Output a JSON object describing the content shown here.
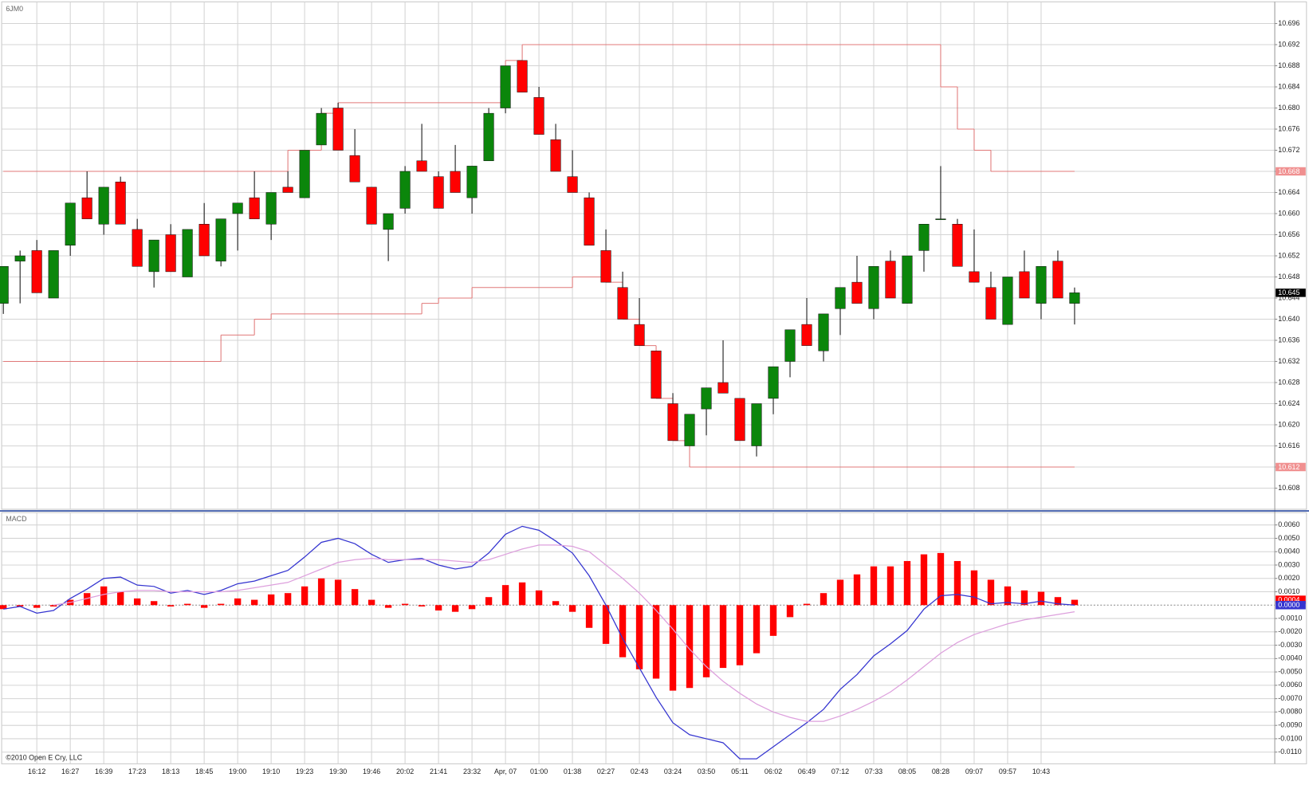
{
  "chart_data": [
    {
      "type": "candlestick",
      "title": "6JM0",
      "open": [
        10.643,
        10.651,
        10.653,
        10.644,
        10.654,
        10.663,
        10.658,
        10.666,
        10.657,
        10.649,
        10.656,
        10.648,
        10.658,
        10.651,
        10.66,
        10.663,
        10.658,
        10.665,
        10.663,
        10.673,
        10.68,
        10.671,
        10.665,
        10.657,
        10.661,
        10.67,
        10.667,
        10.668,
        10.663,
        10.67,
        10.68,
        10.689,
        10.682,
        10.674,
        10.667,
        10.663,
        10.653,
        10.646,
        10.639,
        10.634,
        10.624,
        10.616,
        10.623,
        10.628,
        10.625,
        10.616,
        10.625,
        10.632,
        10.639,
        10.634,
        10.642,
        10.647,
        10.642,
        10.651,
        10.643,
        10.653,
        10.659,
        10.658,
        10.649,
        10.646,
        10.639,
        10.649,
        10.643,
        10.651,
        10.643
      ],
      "high": [
        10.65,
        10.653,
        10.655,
        10.653,
        10.662,
        10.668,
        10.665,
        10.667,
        10.659,
        10.655,
        10.658,
        10.657,
        10.662,
        10.659,
        10.662,
        10.668,
        10.664,
        10.668,
        10.672,
        10.68,
        10.681,
        10.676,
        10.665,
        10.66,
        10.669,
        10.677,
        10.668,
        10.673,
        10.669,
        10.68,
        10.688,
        10.689,
        10.684,
        10.677,
        10.672,
        10.664,
        10.657,
        10.649,
        10.644,
        10.634,
        10.626,
        10.622,
        10.627,
        10.636,
        10.625,
        10.624,
        10.631,
        10.638,
        10.644,
        10.641,
        10.646,
        10.652,
        10.65,
        10.653,
        10.652,
        10.658,
        10.669,
        10.659,
        10.657,
        10.649,
        10.648,
        10.653,
        10.65,
        10.653,
        10.646
      ],
      "low": [
        10.641,
        10.643,
        10.645,
        10.644,
        10.652,
        10.659,
        10.656,
        10.658,
        10.65,
        10.646,
        10.649,
        10.648,
        10.652,
        10.65,
        10.653,
        10.659,
        10.655,
        10.664,
        10.663,
        10.673,
        10.672,
        10.666,
        10.658,
        10.651,
        10.66,
        10.668,
        10.661,
        10.664,
        10.66,
        10.67,
        10.679,
        10.683,
        10.675,
        10.668,
        10.664,
        10.654,
        10.647,
        10.64,
        10.635,
        10.625,
        10.617,
        10.616,
        10.618,
        10.626,
        10.617,
        10.614,
        10.622,
        10.629,
        10.635,
        10.632,
        10.637,
        10.643,
        10.64,
        10.644,
        10.643,
        10.649,
        10.659,
        10.65,
        10.647,
        10.64,
        10.639,
        10.644,
        10.64,
        10.644,
        10.639
      ],
      "close": [
        10.65,
        10.652,
        10.645,
        10.653,
        10.662,
        10.659,
        10.665,
        10.658,
        10.65,
        10.655,
        10.649,
        10.657,
        10.652,
        10.659,
        10.662,
        10.659,
        10.664,
        10.664,
        10.672,
        10.679,
        10.672,
        10.666,
        10.658,
        10.66,
        10.668,
        10.668,
        10.661,
        10.664,
        10.669,
        10.679,
        10.688,
        10.683,
        10.675,
        10.668,
        10.664,
        10.654,
        10.647,
        10.64,
        10.635,
        10.625,
        10.617,
        10.622,
        10.627,
        10.626,
        10.617,
        10.624,
        10.631,
        10.638,
        10.635,
        10.641,
        10.646,
        10.643,
        10.65,
        10.644,
        10.652,
        10.658,
        10.659,
        10.65,
        10.647,
        10.64,
        10.648,
        10.644,
        10.65,
        10.644,
        10.645
      ],
      "up_color": "#0b860b",
      "down_color": "#ff0000",
      "lines": [
        {
          "color": "#e07878",
          "x": [
            0,
            17,
            19,
            20,
            30,
            31,
            56,
            57,
            58,
            59,
            64
          ],
          "values": [
            10.668,
            10.672,
            10.679,
            10.681,
            10.689,
            10.692,
            10.684,
            10.676,
            10.672,
            10.668,
            10.668
          ]
        },
        {
          "color": "#e07878",
          "x": [
            0,
            13,
            15,
            16,
            25,
            26,
            28,
            34,
            36,
            37,
            38,
            39,
            40,
            41,
            64
          ],
          "values": [
            10.632,
            10.637,
            10.64,
            10.641,
            10.643,
            10.644,
            10.646,
            10.648,
            10.647,
            10.64,
            10.635,
            10.625,
            10.617,
            10.612,
            10.612
          ]
        }
      ],
      "ylim": [
        10.604,
        10.7
      ],
      "yticks": [
        10.696,
        10.692,
        10.688,
        10.684,
        {
          "value": 10.68,
          "label": "10.680"
        },
        10.676,
        10.672,
        10.668,
        10.664,
        {
          "value": 10.66,
          "label": "10.660"
        },
        10.656,
        10.652,
        10.648,
        10.644,
        {
          "value": 10.64,
          "label": "10.640"
        },
        10.636,
        10.632,
        10.628,
        10.624,
        {
          "value": 10.62,
          "label": "10.620"
        },
        10.616,
        10.612,
        10.608
      ],
      "grid": true
    },
    {
      "type": "macd",
      "title": "MACD",
      "annotation": "©2010 Open E Cry, LLC",
      "categories": [
        null,
        null,
        "16:12",
        null,
        "16:27",
        null,
        "16:39",
        null,
        "17:23",
        null,
        "18:13",
        null,
        "18:45",
        null,
        "19:00",
        null,
        "19:10",
        null,
        "19:23",
        null,
        "19:30",
        null,
        "19:46",
        null,
        "20:02",
        null,
        "21:41",
        null,
        "23:32",
        null,
        "Apr, 07",
        null,
        "01:00",
        null,
        "01:38",
        null,
        "02:27",
        null,
        "02:43",
        null,
        "03:24",
        null,
        "03:50",
        null,
        "05:11",
        null,
        "06:02",
        null,
        "06:49",
        null,
        "07:12",
        null,
        "07:33",
        null,
        "08:05",
        null,
        "08:28",
        null,
        "09:07",
        null,
        "09:57",
        null,
        "10:43",
        null,
        null
      ],
      "series": [
        {
          "type": "bar",
          "color": "#ff0000",
          "values": [
            -0.0003,
            -0.0001,
            -0.0002,
            -0.0001,
            0.0004,
            0.0009,
            0.0014,
            0.001,
            0.0005,
            0.0003,
            -0.0001,
            0.0001,
            -0.0002,
            0.0001,
            0.0005,
            0.0004,
            0.0008,
            0.0009,
            0.0014,
            0.002,
            0.0019,
            0.0012,
            0.0004,
            -0.0002,
            0.0001,
            -0.0001,
            -0.0004,
            -0.0005,
            -0.0003,
            0.0006,
            0.0015,
            0.0017,
            0.0011,
            0.0003,
            -0.0005,
            -0.0017,
            -0.0029,
            -0.0039,
            -0.0048,
            -0.0055,
            -0.0064,
            -0.0062,
            -0.0054,
            -0.0047,
            -0.0045,
            -0.0036,
            -0.0023,
            -0.0009,
            0.0001,
            0.0009,
            0.0019,
            0.0023,
            0.0029,
            0.0029,
            0.0033,
            0.0038,
            0.0039,
            0.0033,
            0.0026,
            0.0019,
            0.0014,
            0.0011,
            0.001,
            0.0006,
            0.0004
          ]
        },
        {
          "type": "line",
          "color": "#3434d0",
          "values": [
            -0.0003,
            -0.0001,
            -0.0006,
            -0.0004,
            0.0005,
            0.0012,
            0.002,
            0.0021,
            0.0015,
            0.0014,
            0.0009,
            0.0011,
            0.0008,
            0.0011,
            0.0016,
            0.0018,
            0.0022,
            0.0026,
            0.0036,
            0.0047,
            0.005,
            0.0046,
            0.0038,
            0.0032,
            0.0034,
            0.0035,
            0.003,
            0.0027,
            0.0029,
            0.0039,
            0.0053,
            0.0059,
            0.0056,
            0.0048,
            0.0039,
            0.0022,
            0.0,
            -0.0025,
            -0.0047,
            -0.0069,
            -0.0088,
            -0.0097,
            -0.01,
            -0.0103,
            -0.0115,
            -0.0115,
            -0.0106,
            -0.0097,
            -0.0088,
            -0.0078,
            -0.0063,
            -0.0052,
            -0.0038,
            -0.0029,
            -0.0019,
            -0.0003,
            0.0007,
            0.0008,
            0.0006,
            0.0001,
            0.0002,
            0.0001,
            0.0003,
            0.0001,
            0.0
          ],
          "value_labels": [
            null,
            null,
            null,
            null,
            null,
            null,
            null,
            null,
            null,
            null,
            null,
            null,
            null,
            null,
            null,
            null,
            null,
            null,
            null,
            null,
            null,
            null,
            null,
            null,
            null,
            null,
            null,
            null,
            null,
            null,
            null,
            null,
            null,
            null,
            null,
            null,
            null,
            null,
            null,
            null,
            null,
            null,
            null,
            null,
            null,
            null,
            null,
            null,
            null,
            null,
            null,
            null,
            null,
            null,
            null,
            null,
            null,
            null,
            null,
            null,
            null,
            null,
            null,
            null,
            "0.0000"
          ]
        },
        {
          "type": "line",
          "color": "#dda0dd",
          "values": [
            null,
            null,
            null,
            0.0,
            0.0002,
            0.0005,
            0.0008,
            0.001,
            0.0011,
            0.0011,
            0.001,
            0.001,
            0.001,
            0.001,
            0.0011,
            0.0013,
            0.0015,
            0.0017,
            0.0022,
            0.0027,
            0.0032,
            0.0034,
            0.0035,
            0.0034,
            0.0034,
            0.0034,
            0.0034,
            0.0033,
            0.0032,
            0.0034,
            0.0038,
            0.0042,
            0.0045,
            0.0045,
            0.0044,
            0.004,
            0.003,
            0.002,
            0.0009,
            -0.0004,
            -0.0018,
            -0.0033,
            -0.0046,
            -0.0057,
            -0.0066,
            -0.0074,
            -0.008,
            -0.0084,
            -0.0087,
            -0.0087,
            -0.0083,
            -0.0078,
            -0.0072,
            -0.0065,
            -0.0056,
            -0.0046,
            -0.0036,
            -0.0028,
            -0.0022,
            -0.0018,
            -0.0014,
            -0.0011,
            -0.0009,
            -0.0007,
            -0.0005
          ]
        }
      ],
      "ylim": [
        -0.0119,
        0.0068
      ],
      "yticks": [
        {
          "value": 0.006,
          "label": "0.0060"
        },
        {
          "value": 0.005,
          "label": "0.0050"
        },
        {
          "value": 0.004,
          "label": "0.0040"
        },
        {
          "value": 0.003,
          "label": "0.0030"
        },
        {
          "value": 0.002,
          "label": "0.0020"
        },
        {
          "value": 0.001,
          "label": "0.0010"
        },
        {
          "value": -0.001,
          "label": "-0.0010"
        },
        {
          "value": -0.002,
          "label": "-0.0020"
        },
        {
          "value": -0.003,
          "label": "-0.0030"
        },
        {
          "value": -0.004,
          "label": "-0.0040"
        },
        {
          "value": -0.005,
          "label": "-0.0050"
        },
        {
          "value": -0.006,
          "label": "-0.0060"
        },
        {
          "value": -0.007,
          "label": "-0.0070"
        },
        {
          "value": -0.008,
          "label": "-0.0080"
        },
        {
          "value": -0.009,
          "label": "-0.0090"
        },
        {
          "value": -0.01,
          "label": "-0.0100"
        },
        {
          "value": -0.011,
          "label": "-0.0110"
        }
      ],
      "grid": true
    }
  ]
}
